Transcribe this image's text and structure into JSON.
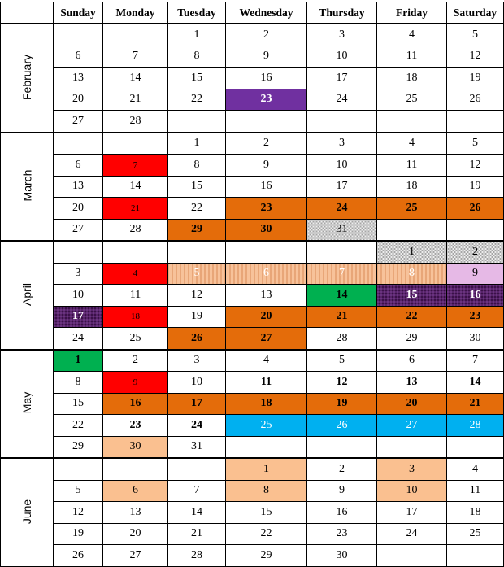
{
  "weekdays": [
    "Sunday",
    "Monday",
    "Tuesday",
    "Wednesday",
    "Thursday",
    "Friday",
    "Saturday"
  ],
  "colors": {
    "purple": "#7030a0",
    "red": "#ff0000",
    "orange": "#e46c0a",
    "peach": "#fac090",
    "lavender": "#e6b9e6",
    "green": "#00b050",
    "blue": "#00b0f0",
    "dark_purple": "#3a1048",
    "gray_check": "#a6a6a6"
  },
  "months": [
    {
      "name": "February",
      "weeks": [
        [
          null,
          null,
          {
            "d": "1"
          },
          {
            "d": "2"
          },
          {
            "d": "3"
          },
          {
            "d": "4"
          },
          {
            "d": "5"
          }
        ],
        [
          {
            "d": "6"
          },
          {
            "d": "7"
          },
          {
            "d": "8"
          },
          {
            "d": "9"
          },
          {
            "d": "10"
          },
          {
            "d": "11"
          },
          {
            "d": "12"
          }
        ],
        [
          {
            "d": "13"
          },
          {
            "d": "14"
          },
          {
            "d": "15"
          },
          {
            "d": "16"
          },
          {
            "d": "17"
          },
          {
            "d": "18"
          },
          {
            "d": "19"
          }
        ],
        [
          {
            "d": "20"
          },
          {
            "d": "21"
          },
          {
            "d": "22"
          },
          {
            "d": "23",
            "c": "purple",
            "b": true
          },
          {
            "d": "24"
          },
          {
            "d": "25"
          },
          {
            "d": "26"
          }
        ],
        [
          {
            "d": "27"
          },
          {
            "d": "28"
          },
          null,
          null,
          null,
          null,
          null
        ]
      ]
    },
    {
      "name": "March",
      "weeks": [
        [
          null,
          null,
          {
            "d": "1"
          },
          {
            "d": "2"
          },
          {
            "d": "3"
          },
          {
            "d": "4"
          },
          {
            "d": "5"
          }
        ],
        [
          {
            "d": "6"
          },
          {
            "d": "7",
            "c": "red",
            "sm": true
          },
          {
            "d": "8"
          },
          {
            "d": "9"
          },
          {
            "d": "10"
          },
          {
            "d": "11"
          },
          {
            "d": "12"
          }
        ],
        [
          {
            "d": "13"
          },
          {
            "d": "14"
          },
          {
            "d": "15"
          },
          {
            "d": "16"
          },
          {
            "d": "17"
          },
          {
            "d": "18"
          },
          {
            "d": "19"
          }
        ],
        [
          {
            "d": "20"
          },
          {
            "d": "21",
            "c": "red",
            "sm": true
          },
          {
            "d": "22"
          },
          {
            "d": "23",
            "c": "orange",
            "b": true
          },
          {
            "d": "24",
            "c": "orange",
            "b": true
          },
          {
            "d": "25",
            "c": "orange",
            "b": true
          },
          {
            "d": "26",
            "c": "orange",
            "b": true
          }
        ],
        [
          {
            "d": "27"
          },
          {
            "d": "28"
          },
          {
            "d": "29",
            "c": "orange",
            "b": true
          },
          {
            "d": "30",
            "c": "orange",
            "b": true
          },
          {
            "d": "31",
            "p": "checker"
          },
          null,
          null
        ]
      ]
    },
    {
      "name": "April",
      "weeks": [
        [
          null,
          null,
          null,
          null,
          null,
          {
            "d": "1",
            "p": "checker"
          },
          {
            "d": "2",
            "p": "checker"
          }
        ],
        [
          {
            "d": "3"
          },
          {
            "d": "4",
            "c": "red",
            "sm": true
          },
          {
            "d": "5",
            "p": "stripe"
          },
          {
            "d": "6",
            "p": "stripe"
          },
          {
            "d": "7",
            "p": "stripe"
          },
          {
            "d": "8",
            "p": "stripe"
          },
          {
            "d": "9",
            "c": "lavender"
          }
        ],
        [
          {
            "d": "10"
          },
          {
            "d": "11"
          },
          {
            "d": "12"
          },
          {
            "d": "13"
          },
          {
            "d": "14",
            "c": "green",
            "b": true
          },
          {
            "d": "15",
            "p": "grid",
            "b": true
          },
          {
            "d": "16",
            "p": "grid",
            "b": true
          }
        ],
        [
          {
            "d": "17",
            "p": "grid",
            "b": true
          },
          {
            "d": "18",
            "c": "red",
            "sm": true
          },
          {
            "d": "19"
          },
          {
            "d": "20",
            "c": "orange",
            "b": true
          },
          {
            "d": "21",
            "c": "orange",
            "b": true
          },
          {
            "d": "22",
            "c": "orange",
            "b": true
          },
          {
            "d": "23",
            "c": "orange",
            "b": true
          }
        ],
        [
          {
            "d": "24"
          },
          {
            "d": "25"
          },
          {
            "d": "26",
            "c": "orange",
            "b": true
          },
          {
            "d": "27",
            "c": "orange",
            "b": true
          },
          {
            "d": "28"
          },
          {
            "d": "29"
          },
          {
            "d": "30"
          }
        ]
      ]
    },
    {
      "name": "May",
      "weeks": [
        [
          {
            "d": "1",
            "c": "green",
            "b": true
          },
          {
            "d": "2"
          },
          {
            "d": "3"
          },
          {
            "d": "4"
          },
          {
            "d": "5"
          },
          {
            "d": "6"
          },
          {
            "d": "7"
          }
        ],
        [
          {
            "d": "8"
          },
          {
            "d": "9",
            "c": "red",
            "sm": true
          },
          {
            "d": "10"
          },
          {
            "d": "11",
            "b": true
          },
          {
            "d": "12",
            "b": true
          },
          {
            "d": "13",
            "b": true
          },
          {
            "d": "14",
            "b": true
          }
        ],
        [
          {
            "d": "15"
          },
          {
            "d": "16",
            "c": "orange",
            "b": true
          },
          {
            "d": "17",
            "c": "orange",
            "b": true
          },
          {
            "d": "18",
            "c": "orange",
            "b": true
          },
          {
            "d": "19",
            "c": "orange",
            "b": true
          },
          {
            "d": "20",
            "c": "orange",
            "b": true
          },
          {
            "d": "21",
            "c": "orange",
            "b": true
          }
        ],
        [
          {
            "d": "22"
          },
          {
            "d": "23",
            "b": true
          },
          {
            "d": "24",
            "b": true
          },
          {
            "d": "25",
            "c": "blue"
          },
          {
            "d": "26",
            "c": "blue"
          },
          {
            "d": "27",
            "c": "blue"
          },
          {
            "d": "28",
            "c": "blue"
          }
        ],
        [
          {
            "d": "29"
          },
          {
            "d": "30",
            "c": "peach"
          },
          {
            "d": "31"
          },
          null,
          null,
          null,
          null
        ]
      ]
    },
    {
      "name": "June",
      "weeks": [
        [
          null,
          null,
          null,
          {
            "d": "1",
            "c": "peach"
          },
          {
            "d": "2"
          },
          {
            "d": "3",
            "c": "peach"
          },
          {
            "d": "4"
          }
        ],
        [
          {
            "d": "5"
          },
          {
            "d": "6",
            "c": "peach"
          },
          {
            "d": "7"
          },
          {
            "d": "8",
            "c": "peach"
          },
          {
            "d": "9"
          },
          {
            "d": "10",
            "c": "peach"
          },
          {
            "d": "11"
          }
        ],
        [
          {
            "d": "12"
          },
          {
            "d": "13"
          },
          {
            "d": "14"
          },
          {
            "d": "15"
          },
          {
            "d": "16"
          },
          {
            "d": "17"
          },
          {
            "d": "18"
          }
        ],
        [
          {
            "d": "19"
          },
          {
            "d": "20"
          },
          {
            "d": "21"
          },
          {
            "d": "22"
          },
          {
            "d": "23"
          },
          {
            "d": "24"
          },
          {
            "d": "25"
          }
        ],
        [
          {
            "d": "26"
          },
          {
            "d": "27"
          },
          {
            "d": "28"
          },
          {
            "d": "29"
          },
          {
            "d": "30"
          },
          null,
          null
        ]
      ]
    }
  ]
}
